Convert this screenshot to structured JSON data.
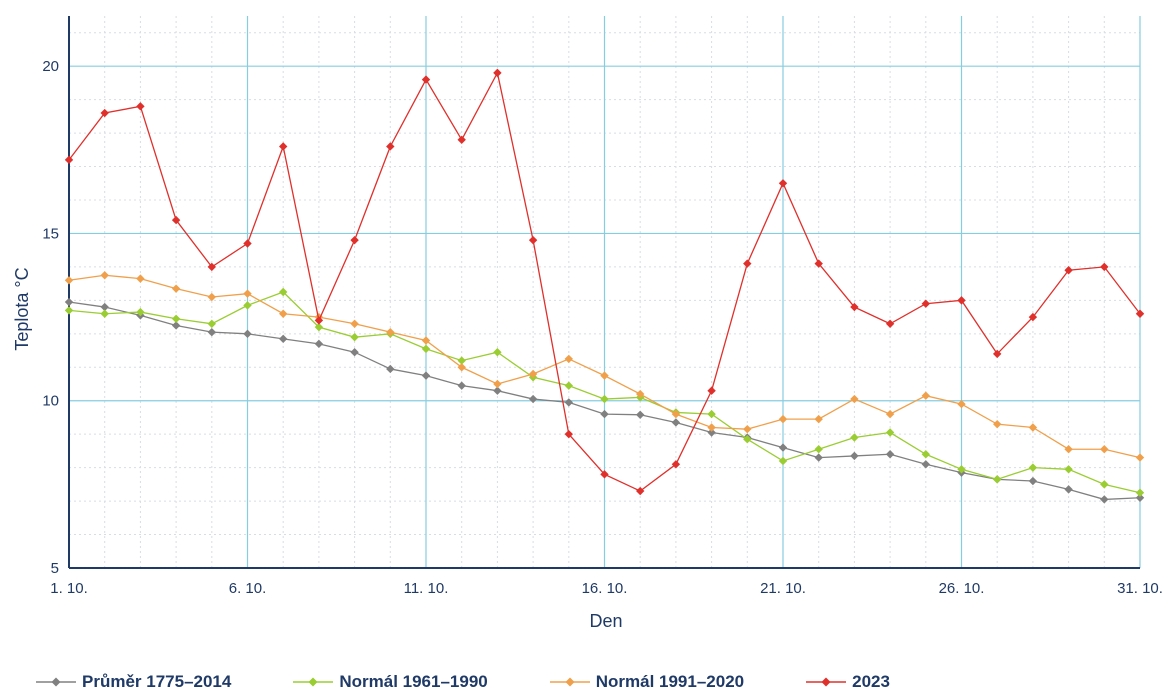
{
  "chart_data": {
    "type": "line",
    "xlabel": "Den",
    "ylabel": "Teplota °C",
    "x_tick_labels": [
      "1. 10.",
      "6. 10.",
      "11. 10.",
      "16. 10.",
      "21. 10.",
      "26. 10.",
      "31. 10."
    ],
    "y_tick_labels": [
      "5",
      "10",
      "15",
      "20"
    ],
    "x": [
      1,
      2,
      3,
      4,
      5,
      6,
      7,
      8,
      9,
      10,
      11,
      12,
      13,
      14,
      15,
      16,
      17,
      18,
      19,
      20,
      21,
      22,
      23,
      24,
      25,
      26,
      27,
      28,
      29,
      30,
      31
    ],
    "xlim": [
      1,
      31
    ],
    "ylim": [
      5,
      21.5
    ],
    "grid": true,
    "legend_position": "bottom",
    "series": [
      {
        "name": "Průměr 1775–2014",
        "color": "#808080",
        "values": [
          12.95,
          12.8,
          12.55,
          12.25,
          12.05,
          12.0,
          11.85,
          11.7,
          11.45,
          10.95,
          10.75,
          10.45,
          10.3,
          10.05,
          9.95,
          9.6,
          9.58,
          9.35,
          9.05,
          8.9,
          8.6,
          8.3,
          8.35,
          8.4,
          8.1,
          7.85,
          7.65,
          7.6,
          7.35,
          7.05,
          7.1
        ]
      },
      {
        "name": "Normál 1961–1990",
        "color": "#9acd32",
        "values": [
          12.7,
          12.6,
          12.65,
          12.45,
          12.3,
          12.85,
          13.25,
          12.2,
          11.9,
          12.0,
          11.55,
          11.2,
          11.45,
          10.7,
          10.45,
          10.05,
          10.1,
          9.65,
          9.6,
          8.85,
          8.2,
          8.55,
          8.9,
          9.05,
          8.4,
          7.95,
          7.65,
          8.0,
          7.95,
          7.5,
          7.25
        ]
      },
      {
        "name": "Normál 1991–2020",
        "color": "#f0a04b",
        "values": [
          13.6,
          13.75,
          13.65,
          13.35,
          13.1,
          13.2,
          12.6,
          12.5,
          12.3,
          12.05,
          11.8,
          11.0,
          10.5,
          10.8,
          11.25,
          10.75,
          10.2,
          9.6,
          9.2,
          9.15,
          9.45,
          9.45,
          10.05,
          9.6,
          10.15,
          9.9,
          9.3,
          9.2,
          8.55,
          8.55,
          8.3
        ]
      },
      {
        "name": "2023",
        "color": "#e0302b",
        "values": [
          17.2,
          18.6,
          18.8,
          15.4,
          14.0,
          14.7,
          17.6,
          12.4,
          14.8,
          17.6,
          19.6,
          17.8,
          19.8,
          14.8,
          9.0,
          7.8,
          7.3,
          8.1,
          10.3,
          14.1,
          16.5,
          14.1,
          12.8,
          12.3,
          12.9,
          13.0,
          11.4,
          12.5,
          13.9,
          14.0,
          12.6
        ]
      }
    ]
  }
}
